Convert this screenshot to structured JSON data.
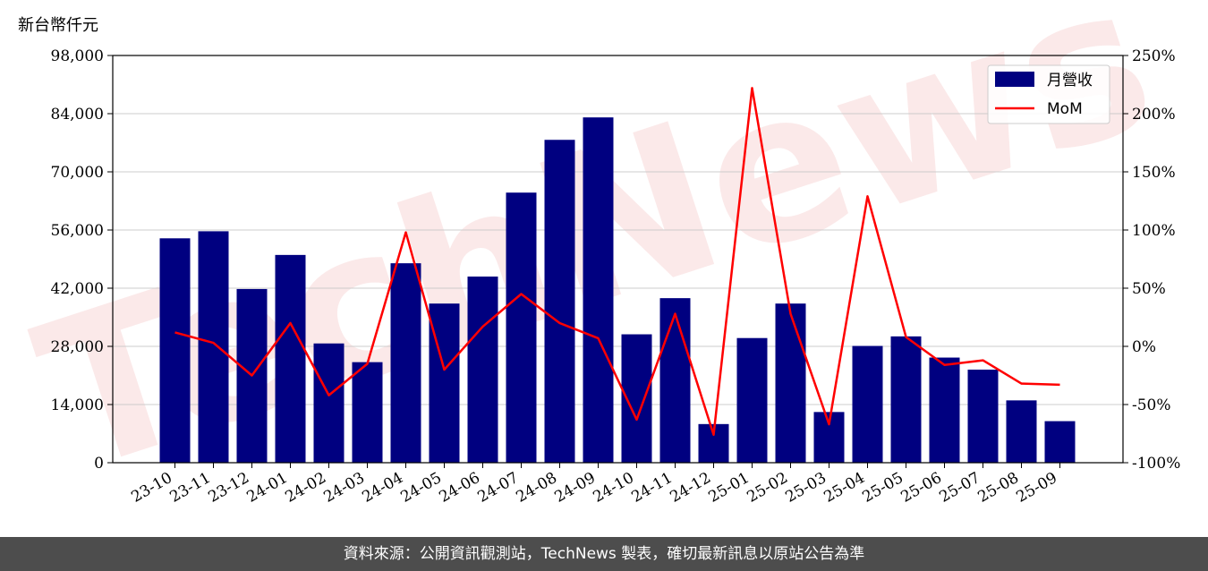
{
  "chart_data": {
    "type": "bar",
    "y_unit_label": "新台幣仟元",
    "categories": [
      "23-10",
      "23-11",
      "23-12",
      "24-01",
      "24-02",
      "24-03",
      "24-04",
      "24-05",
      "24-06",
      "24-07",
      "24-08",
      "24-09",
      "24-10",
      "24-11",
      "24-12",
      "25-01",
      "25-02",
      "25-03",
      "25-04",
      "25-05",
      "25-06",
      "25-07",
      "25-08",
      "25-09"
    ],
    "series": [
      {
        "name": "月營收",
        "type": "bar",
        "axis": "left",
        "color": "#000080",
        "values": [
          54000,
          55700,
          41800,
          50000,
          28700,
          24200,
          48000,
          38300,
          44800,
          65000,
          77700,
          83100,
          30900,
          39600,
          9300,
          30000,
          38300,
          12200,
          28100,
          30400,
          25300,
          22400,
          15000,
          10000
        ]
      },
      {
        "name": "MoM",
        "type": "line",
        "axis": "right",
        "color": "#ff0000",
        "values": [
          12,
          3,
          -25,
          20,
          -42,
          -15,
          98,
          -20,
          17,
          45,
          20,
          7,
          -63,
          28,
          -76,
          222,
          28,
          -67,
          129,
          8,
          -16,
          -12,
          -32,
          -33
        ]
      }
    ],
    "y_left": {
      "min": 0,
      "max": 98000,
      "ticks": [
        0,
        14000,
        28000,
        42000,
        56000,
        70000,
        84000,
        98000
      ],
      "tick_labels": [
        "0",
        "14,000",
        "28,000",
        "42,000",
        "56,000",
        "70,000",
        "84,000",
        "98,000"
      ]
    },
    "y_right": {
      "min": -100,
      "max": 250,
      "ticks": [
        -100,
        -50,
        0,
        50,
        100,
        150,
        200,
        250
      ],
      "tick_labels": [
        "-100%",
        "-50%",
        "0%",
        "50%",
        "100%",
        "150%",
        "200%",
        "250%"
      ]
    },
    "grid": "horizontal",
    "legend_position": "top-right"
  },
  "watermark": "TechNews",
  "footer": {
    "text": "資料來源：公開資訊觀測站，TechNews 製表，確切最新訊息以原站公告為準"
  }
}
